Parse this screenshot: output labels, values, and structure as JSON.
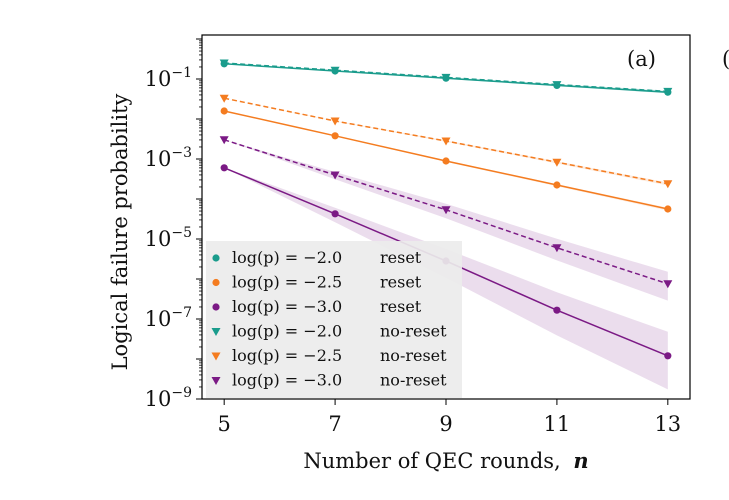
{
  "chart_data": {
    "type": "line",
    "panel_label": "(a)",
    "edge_glyph": "(",
    "xlabel": "Number of QEC rounds,",
    "xlabel_var": "n",
    "ylabel": "Logical failure probability",
    "x": [
      5,
      7,
      9,
      11,
      13
    ],
    "xlim": [
      4.6,
      13.4
    ],
    "ylim_log10": [
      -9,
      0.1
    ],
    "x_ticks": [
      {
        "value": 5,
        "label": "5"
      },
      {
        "value": 7,
        "label": "7"
      },
      {
        "value": 9,
        "label": "9"
      },
      {
        "value": 11,
        "label": "11"
      },
      {
        "value": 13,
        "label": "13"
      }
    ],
    "y_ticks": [
      {
        "exp": -1,
        "base": "10",
        "sup": "−1"
      },
      {
        "exp": -3,
        "base": "10",
        "sup": "−3"
      },
      {
        "exp": -5,
        "base": "10",
        "sup": "−5"
      },
      {
        "exp": -7,
        "base": "10",
        "sup": "−7"
      },
      {
        "exp": -9,
        "base": "10",
        "sup": "−9"
      }
    ],
    "series": [
      {
        "name": "log(p) = −2.0   reset",
        "lhs": "log(p) = −2.0",
        "rhs": "reset",
        "color": "#1a9c8c",
        "marker": "circle",
        "dashed": false,
        "log10_values": [
          -0.62,
          -0.8,
          -0.98,
          -1.16,
          -1.33
        ],
        "band_log10": 0.02
      },
      {
        "name": "log(p) = −2.5   reset",
        "lhs": "log(p) = −2.5",
        "rhs": "reset",
        "color": "#f47c20",
        "marker": "circle",
        "dashed": false,
        "log10_values": [
          -1.8,
          -2.42,
          -3.05,
          -3.65,
          -4.25
        ],
        "band_log10": 0.03
      },
      {
        "name": "log(p) = −3.0   reset",
        "lhs": "log(p) = −3.0",
        "rhs": "reset",
        "color": "#7b1a85",
        "marker": "circle",
        "dashed": false,
        "log10_values": [
          -3.22,
          -4.37,
          -5.55,
          -6.78,
          -7.92
        ],
        "band_log10": 0.6
      },
      {
        "name": "log(p) = −2.0   no-reset",
        "lhs": "log(p) = −2.0",
        "rhs": "no-reset",
        "color": "#1a9c8c",
        "marker": "triangle",
        "dashed": true,
        "log10_values": [
          -0.6,
          -0.78,
          -0.96,
          -1.14,
          -1.31
        ],
        "band_log10": 0.02
      },
      {
        "name": "log(p) = −2.5   no-reset",
        "lhs": "log(p) = −2.5",
        "rhs": "no-reset",
        "color": "#f47c20",
        "marker": "triangle",
        "dashed": true,
        "log10_values": [
          -1.48,
          -2.05,
          -2.55,
          -3.08,
          -3.62
        ],
        "band_log10": 0.03
      },
      {
        "name": "log(p) = −3.0   no-reset",
        "lhs": "log(p) = −3.0",
        "rhs": "no-reset",
        "color": "#7b1a85",
        "marker": "triangle",
        "dashed": true,
        "log10_values": [
          -2.52,
          -3.4,
          -4.27,
          -5.22,
          -6.12
        ],
        "band_log10": 0.3
      }
    ],
    "legend_location": "lower-left"
  }
}
